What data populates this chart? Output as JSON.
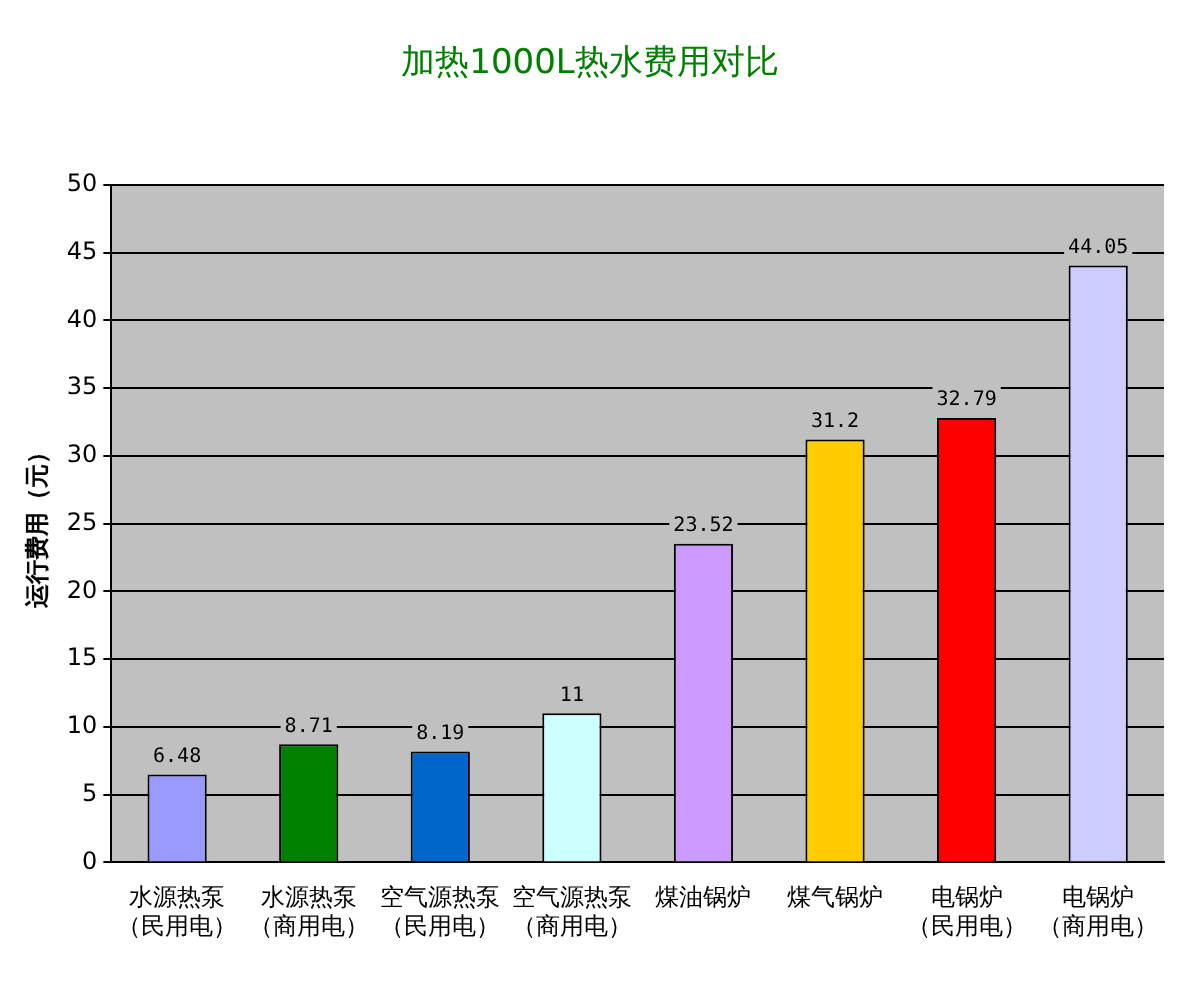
{
  "chart_data": {
    "type": "bar",
    "title": "加热1000L热水费用对比",
    "ylabel": "运行费用（元）",
    "categories": [
      "水源热泵（民用电）",
      "水源热泵（商用电）",
      "空气源热泵（民用电）",
      "空气源热泵（商用电）",
      "煤油锅炉",
      "煤气锅炉",
      "电锅炉（民用电）",
      "电锅炉（商用电）"
    ],
    "values": [
      6.48,
      8.71,
      8.19,
      11,
      23.52,
      31.2,
      32.79,
      44.05
    ],
    "colors": [
      "#9999ff",
      "#008000",
      "#0066cc",
      "#ccffff",
      "#cc99ff",
      "#ffcc00",
      "#ff0000",
      "#ccccff"
    ],
    "ylim": [
      0,
      50
    ],
    "yticks": [
      0,
      5,
      10,
      15,
      20,
      25,
      30,
      35,
      40,
      45,
      50
    ],
    "grid": "y",
    "data_labels": true,
    "legend": false
  }
}
